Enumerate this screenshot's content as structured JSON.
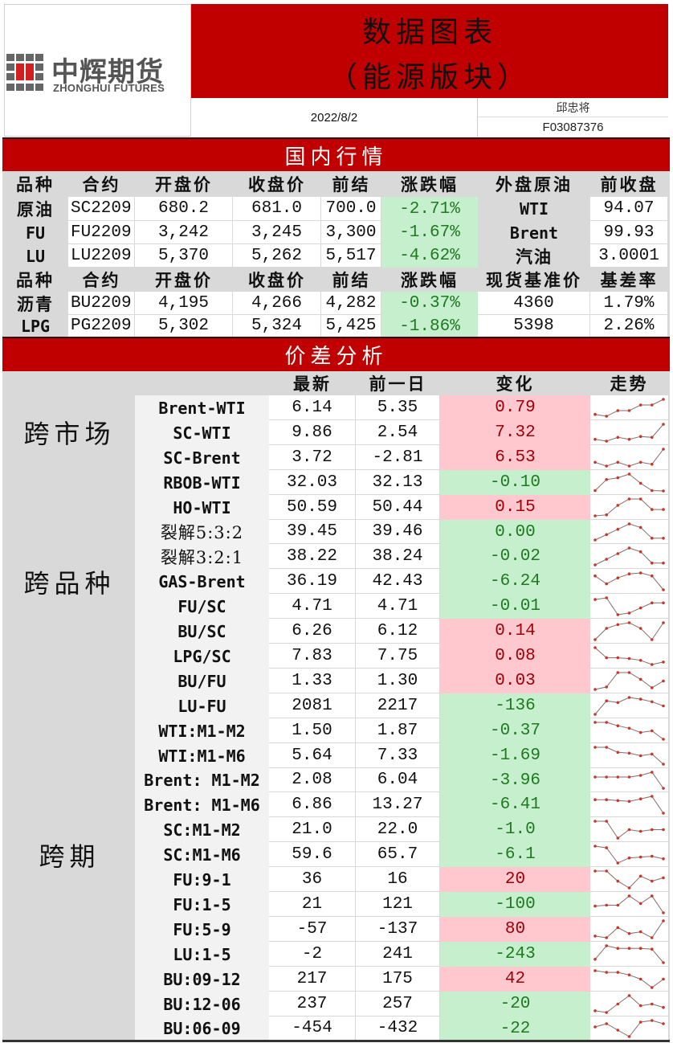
{
  "header": {
    "logo_cn": "中辉期货",
    "logo_en": "ZHONGHUI FUTURES",
    "title_line1": "数据图表",
    "title_line2": "（能源版块）",
    "date": "2022/8/2",
    "author": "邱忠将",
    "author_id": "F03087376"
  },
  "colors": {
    "brand_red": "#c00000",
    "gain_bg": "#ffc7ce",
    "gain_text": "#9c0006",
    "loss_bg": "#c6efce",
    "loss_text": "#1e7a1e",
    "sparkline": "#8b3a3a"
  },
  "domestic": {
    "section_title": "国内行情",
    "header1": [
      "品种",
      "合约",
      "开盘价",
      "收盘价",
      "前结",
      "涨跌幅",
      "外盘原油",
      "前收盘"
    ],
    "rows1": [
      {
        "variety": "原油",
        "contract": "SC2209",
        "open": "680.2",
        "close": "681.0",
        "prev_settle": "700.0",
        "change_pct": "-2.71%",
        "foreign": "WTI",
        "foreign_close": "94.07"
      },
      {
        "variety": "FU",
        "contract": "FU2209",
        "open": "3,242",
        "close": "3,245",
        "prev_settle": "3,300",
        "change_pct": "-1.67%",
        "foreign": "Brent",
        "foreign_close": "99.93"
      },
      {
        "variety": "LU",
        "contract": "LU2209",
        "open": "5,370",
        "close": "5,262",
        "prev_settle": "5,517",
        "change_pct": "-4.62%",
        "foreign": "汽油",
        "foreign_close": "3.0001"
      }
    ],
    "header2": [
      "品种",
      "合约",
      "开盘价",
      "收盘价",
      "前结",
      "涨跌幅",
      "现货基准价",
      "基差率"
    ],
    "rows2": [
      {
        "variety": "沥青",
        "contract": "BU2209",
        "open": "4,195",
        "close": "4,266",
        "prev_settle": "4,282",
        "change_pct": "-0.37%",
        "spot": "4360",
        "basis": "1.79%"
      },
      {
        "variety": "LPG",
        "contract": "PG2209",
        "open": "5,302",
        "close": "5,324",
        "prev_settle": "5,425",
        "change_pct": "-1.86%",
        "spot": "5398",
        "basis": "2.26%"
      }
    ]
  },
  "spread": {
    "section_title": "价差分析",
    "columns": [
      "最新",
      "前一日",
      "变化",
      "走势"
    ],
    "categories": [
      {
        "label": "跨市场",
        "start": 0,
        "end": 3
      },
      {
        "label": "跨品种",
        "start": 3,
        "end": 12
      },
      {
        "label": "跨期",
        "start": 12,
        "end": 25
      }
    ],
    "rows": [
      {
        "name": "Brent-WTI",
        "latest": "6.14",
        "prev": "5.35",
        "change": "0.79",
        "dir": "up",
        "trend": [
          2,
          1,
          4,
          4,
          7,
          7,
          10
        ]
      },
      {
        "name": "SC-WTI",
        "latest": "9.86",
        "prev": "2.54",
        "change": "7.32",
        "dir": "up",
        "trend": [
          2,
          1,
          3,
          2,
          3.5,
          3,
          10
        ]
      },
      {
        "name": "SC-Brent",
        "latest": "3.72",
        "prev": "-2.81",
        "change": "6.53",
        "dir": "up",
        "trend": [
          3,
          1,
          3,
          1,
          3,
          2,
          10
        ]
      },
      {
        "name": "RBOB-WTI",
        "latest": "32.03",
        "prev": "32.13",
        "change": "-0.10",
        "dir": "down",
        "trend": [
          1,
          7,
          8,
          10,
          5,
          1,
          0.8
        ]
      },
      {
        "name": "HO-WTI",
        "latest": "50.59",
        "prev": "50.44",
        "change": "0.15",
        "dir": "up",
        "trend": [
          0,
          0.5,
          5,
          8,
          8,
          3,
          3
        ]
      },
      {
        "name": "裂解5:3:2",
        "latest": "39.45",
        "prev": "39.46",
        "change": "0.00",
        "dir": "down",
        "trend": [
          0,
          3,
          6,
          9,
          7,
          1,
          1
        ]
      },
      {
        "name": "裂解3:2:1",
        "latest": "38.22",
        "prev": "38.24",
        "change": "-0.02",
        "dir": "down",
        "trend": [
          0,
          3,
          6,
          9,
          7,
          1,
          1
        ]
      },
      {
        "name": "GAS-Brent",
        "latest": "36.19",
        "prev": "42.43",
        "change": "-6.24",
        "dir": "down",
        "trend": [
          7,
          3,
          6,
          8,
          8.5,
          7,
          0
        ]
      },
      {
        "name": "FU/SC",
        "latest": "4.71",
        "prev": "4.71",
        "change": "-0.01",
        "dir": "down",
        "trend": [
          9,
          10,
          0,
          1,
          4,
          7,
          7
        ]
      },
      {
        "name": "BU/SC",
        "latest": "6.26",
        "prev": "6.12",
        "change": "0.14",
        "dir": "up",
        "trend": [
          0,
          6,
          8,
          9,
          6,
          0,
          9
        ]
      },
      {
        "name": "LPG/SC",
        "latest": "7.83",
        "prev": "7.75",
        "change": "0.08",
        "dir": "up",
        "trend": [
          10,
          4,
          4,
          3.5,
          2.5,
          0,
          1.5
        ]
      },
      {
        "name": "BU/FU",
        "latest": "1.33",
        "prev": "1.30",
        "change": "0.03",
        "dir": "up",
        "trend": [
          0,
          1.5,
          10,
          10,
          6,
          1,
          5
        ]
      },
      {
        "name": "LU-FU",
        "latest": "2081",
        "prev": "2217",
        "change": "-136",
        "dir": "down",
        "trend": [
          0,
          8,
          7,
          10,
          9,
          7.5,
          5
        ]
      },
      {
        "name": "WTI:M1-M2",
        "latest": "1.50",
        "prev": "1.87",
        "change": "-0.37",
        "dir": "down",
        "trend": [
          10,
          10,
          8,
          6.5,
          4,
          5,
          0
        ]
      },
      {
        "name": "WTI:M1-M6",
        "latest": "5.64",
        "prev": "7.33",
        "change": "-1.69",
        "dir": "down",
        "trend": [
          10,
          10,
          7,
          6.5,
          5,
          6,
          0
        ]
      },
      {
        "name": "Brent: M1-M2",
        "latest": "2.08",
        "prev": "6.04",
        "change": "-3.96",
        "dir": "down",
        "trend": [
          7,
          7,
          7,
          7,
          8,
          10,
          0
        ]
      },
      {
        "name": "Brent: M1-M6",
        "latest": "6.86",
        "prev": "13.27",
        "change": "-6.41",
        "dir": "down",
        "trend": [
          8,
          8,
          7.5,
          7,
          8.5,
          10,
          0
        ]
      },
      {
        "name": "SC:M1-M2",
        "latest": "21.0",
        "prev": "22.0",
        "change": "-1.0",
        "dir": "down",
        "trend": [
          10,
          10,
          0,
          5,
          4,
          5,
          5
        ]
      },
      {
        "name": "SC:M1-M6",
        "latest": "59.6",
        "prev": "65.7",
        "change": "-6.1",
        "dir": "down",
        "trend": [
          10,
          9,
          0,
          3,
          3.5,
          4,
          2.5
        ]
      },
      {
        "name": "FU:9-1",
        "latest": "36",
        "prev": "16",
        "change": "20",
        "dir": "up",
        "trend": [
          10,
          10,
          4,
          0,
          7,
          4,
          6
        ]
      },
      {
        "name": "FU:1-5",
        "latest": "21",
        "prev": "121",
        "change": "-100",
        "dir": "down",
        "trend": [
          4,
          4.5,
          4.5,
          10,
          5.5,
          10,
          0
        ]
      },
      {
        "name": "FU:5-9",
        "latest": "-57",
        "prev": "-137",
        "change": "80",
        "dir": "up",
        "trend": [
          1,
          0,
          6,
          2.5,
          3.5,
          0,
          10
        ]
      },
      {
        "name": "LU:1-5",
        "latest": "-2",
        "prev": "241",
        "change": "-243",
        "dir": "down",
        "trend": [
          2,
          10,
          8.5,
          8.5,
          8.5,
          8,
          0
        ]
      },
      {
        "name": "BU:09-12",
        "latest": "217",
        "prev": "175",
        "change": "42",
        "dir": "up",
        "trend": [
          10,
          9,
          9,
          7.5,
          5,
          0,
          5
        ]
      },
      {
        "name": "BU:12-06",
        "latest": "237",
        "prev": "257",
        "change": "-20",
        "dir": "down",
        "trend": [
          1,
          0,
          5,
          10,
          4,
          5,
          3
        ]
      },
      {
        "name": "BU:06-09",
        "latest": "-454",
        "prev": "-432",
        "change": "-22",
        "dir": "down",
        "trend": [
          6,
          8,
          4,
          0,
          9,
          10,
          8
        ]
      }
    ]
  }
}
